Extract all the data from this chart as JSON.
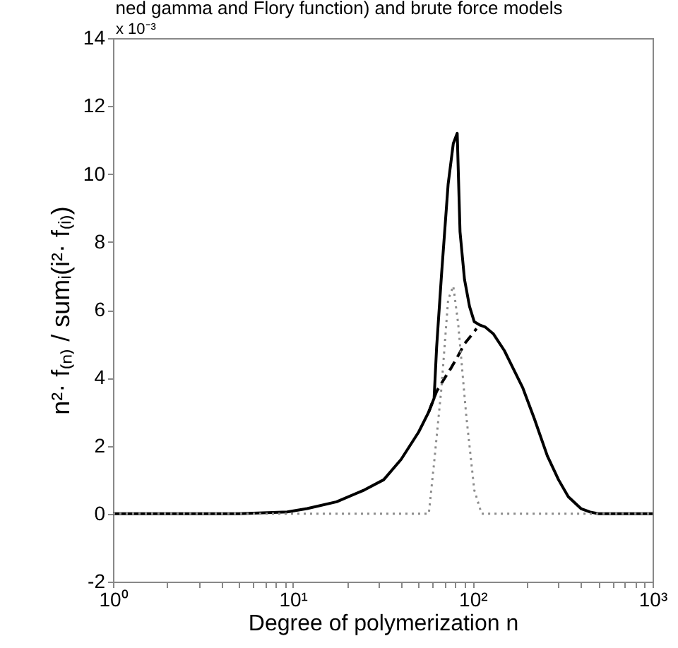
{
  "chart_data": {
    "type": "line",
    "title": "ned gamma and Flory function) and brute force models",
    "xlabel": "Degree of polymerization n",
    "ylabel": "n²· f₍ₙ₎ / sumᵢ(i²· f₍ᵢ₎)",
    "annotations": [
      "x 10⁻³"
    ],
    "log": "x",
    "grid": false,
    "legend": false,
    "xlim": [
      1,
      1000
    ],
    "xticks": [
      {
        "value": 1,
        "label": "10⁰"
      },
      {
        "value": 2,
        "label": null
      },
      {
        "value": 3,
        "label": null
      },
      {
        "value": 4,
        "label": null
      },
      {
        "value": 5,
        "label": null
      },
      {
        "value": 6,
        "label": null
      },
      {
        "value": 7,
        "label": null
      },
      {
        "value": 8,
        "label": null
      },
      {
        "value": 9,
        "label": null
      },
      {
        "value": 10,
        "label": "10¹"
      },
      {
        "value": 20,
        "label": null
      },
      {
        "value": 30,
        "label": null
      },
      {
        "value": 40,
        "label": null
      },
      {
        "value": 50,
        "label": null
      },
      {
        "value": 60,
        "label": null
      },
      {
        "value": 70,
        "label": null
      },
      {
        "value": 80,
        "label": null
      },
      {
        "value": 90,
        "label": null
      },
      {
        "value": 100,
        "label": "10²"
      },
      {
        "value": 200,
        "label": null
      },
      {
        "value": 300,
        "label": null
      },
      {
        "value": 400,
        "label": null
      },
      {
        "value": 500,
        "label": null
      },
      {
        "value": 600,
        "label": null
      },
      {
        "value": 700,
        "label": null
      },
      {
        "value": 800,
        "label": null
      },
      {
        "value": 900,
        "label": null
      },
      {
        "value": 1000,
        "label": "10³"
      }
    ],
    "ylim": [
      -2,
      14
    ],
    "yticks": [
      -2,
      0,
      2,
      4,
      6,
      8,
      10,
      12,
      14
    ],
    "series": [
      {
        "color": "#000000",
        "line_style": "solid",
        "x": [
          1,
          5,
          9.3,
          12,
          17.5,
          25,
          32,
          40,
          50,
          57,
          61,
          63,
          67,
          73,
          78,
          82,
          85,
          90,
          96,
          102,
          110,
          117,
          130,
          150,
          190,
          220,
          260,
          300,
          340,
          400,
          450,
          500,
          1000
        ],
        "values": [
          0,
          0,
          0.05,
          0.15,
          0.35,
          0.7,
          1.0,
          1.6,
          2.4,
          3.0,
          3.4,
          4.9,
          7.0,
          9.7,
          10.9,
          11.2,
          8.3,
          6.9,
          6.1,
          5.65,
          5.55,
          5.5,
          5.3,
          4.8,
          3.7,
          2.8,
          1.7,
          1.0,
          0.5,
          0.15,
          0.05,
          0,
          0
        ]
      },
      {
        "color": "#000000",
        "line_style": "dashed",
        "x": [
          57,
          63,
          70,
          76,
          82,
          90,
          100,
          105
        ],
        "values": [
          3.0,
          3.6,
          4.0,
          4.3,
          4.6,
          5.0,
          5.3,
          5.45
        ]
      },
      {
        "color": "#8c8c8c",
        "line_style": "dotted",
        "x": [
          1,
          50,
          57,
          61,
          67,
          73,
          78,
          83,
          92,
          102,
          112,
          1000
        ],
        "values": [
          0,
          0,
          0,
          1.5,
          3.7,
          6.3,
          6.7,
          5.6,
          2.9,
          0.7,
          0,
          0
        ]
      }
    ]
  }
}
